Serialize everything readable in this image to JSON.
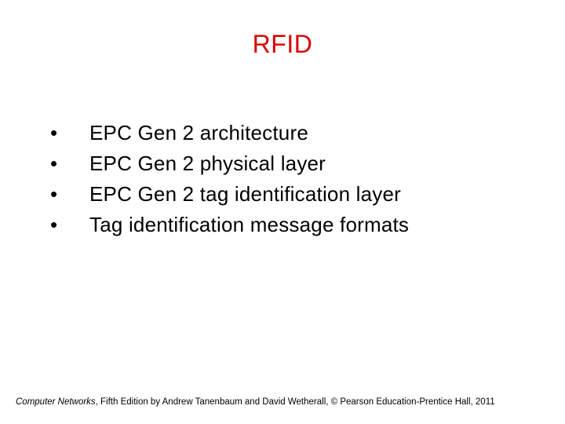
{
  "title": {
    "text": "RFID",
    "color": "#d90000",
    "fontsize": 32
  },
  "bullets": {
    "color": "#000000",
    "fontsize": 26,
    "marker": "•",
    "items": [
      "EPC Gen 2 architecture",
      "EPC Gen 2 physical layer",
      "EPC Gen 2 tag identification layer",
      "Tag identification message formats"
    ]
  },
  "footer": {
    "book_title": "Computer Networks",
    "rest": ", Fifth Edition by Andrew Tanenbaum and David Wetherall, © Pearson Education-Prentice Hall, 2011",
    "fontsize": 11.5,
    "color": "#000000"
  },
  "background_color": "#ffffff"
}
